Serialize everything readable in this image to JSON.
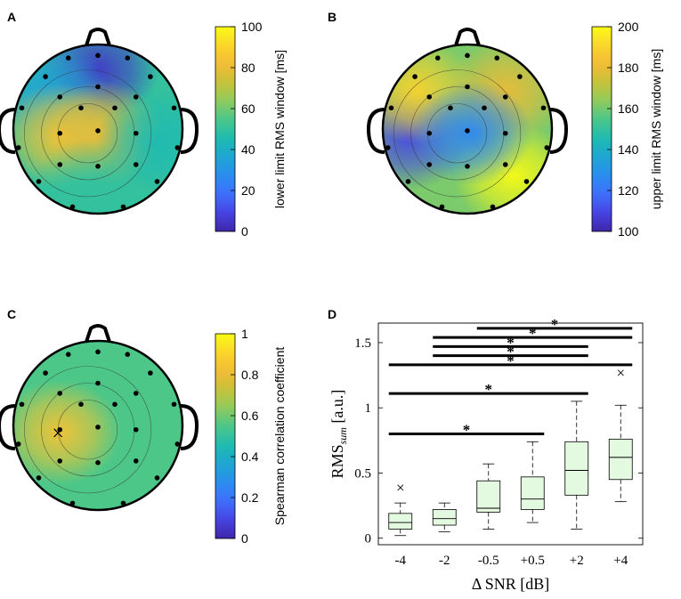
{
  "colors": {
    "parula": [
      "#3e26a8",
      "#4743e2",
      "#3f6ffd",
      "#2a8ef0",
      "#1ea6d3",
      "#1ebbb0",
      "#4ac78a",
      "#8fcb5e",
      "#c7c238",
      "#f4ba37",
      "#fbd62c",
      "#f9fb15"
    ],
    "box_fill": "#e4fae0",
    "axis": "#000000"
  },
  "chart_data": [
    {
      "panel": "A",
      "type": "heatmap",
      "subtype": "scalp-topography",
      "colorbar": {
        "label": "lower limit RMS window [ms]",
        "ticks": [
          "100",
          "80",
          "60",
          "40",
          "20",
          "0"
        ],
        "range": [
          0,
          100
        ]
      },
      "hotspots": [
        {
          "region": "front-center",
          "value": 5
        },
        {
          "region": "front-left",
          "value": 35
        },
        {
          "region": "center-left",
          "value": 85
        },
        {
          "region": "center",
          "value": 80
        },
        {
          "region": "right",
          "value": 45
        },
        {
          "region": "back",
          "value": 50
        }
      ]
    },
    {
      "panel": "B",
      "type": "heatmap",
      "subtype": "scalp-topography",
      "colorbar": {
        "label": "upper limit RMS window [ms]",
        "ticks": [
          "200",
          "180",
          "160",
          "140",
          "120",
          "100"
        ],
        "range": [
          100,
          200
        ]
      },
      "hotspots": [
        {
          "region": "left",
          "value": 110
        },
        {
          "region": "front-left",
          "value": 190
        },
        {
          "region": "right-back",
          "value": 200
        },
        {
          "region": "front-right",
          "value": 180
        },
        {
          "region": "center",
          "value": 125
        }
      ]
    },
    {
      "panel": "C",
      "type": "heatmap",
      "subtype": "scalp-topography",
      "colorbar": {
        "label": "Spearman correlation coefficient",
        "ticks": [
          "1",
          "0.8",
          "0.6",
          "0.4",
          "0.2",
          "0"
        ],
        "range": [
          0,
          1
        ]
      },
      "marker": {
        "symbol": "×",
        "region": "center-left"
      },
      "hotspots": [
        {
          "region": "center-left",
          "value": 0.85
        },
        {
          "region": "periphery",
          "value": 0.55
        }
      ]
    },
    {
      "panel": "D",
      "type": "box",
      "title": "",
      "xlabel": "Δ SNR [dB]",
      "ylabel_main": "RMS",
      "ylabel_sub": "sum",
      "ylabel_unit": "[a.u.]",
      "ylim": [
        -0.05,
        1.65
      ],
      "yticks": [
        "0",
        "0.5",
        "1",
        "1.5"
      ],
      "categories": [
        "-4",
        "-2",
        "-0.5",
        "+0.5",
        "+2",
        "+4"
      ],
      "boxes": [
        {
          "min": 0.02,
          "q1": 0.07,
          "median": 0.12,
          "q3": 0.19,
          "max": 0.27,
          "outliers": [
            0.39
          ]
        },
        {
          "min": 0.05,
          "q1": 0.1,
          "median": 0.15,
          "q3": 0.22,
          "max": 0.27,
          "outliers": []
        },
        {
          "min": 0.07,
          "q1": 0.2,
          "median": 0.23,
          "q3": 0.44,
          "max": 0.57,
          "outliers": []
        },
        {
          "min": 0.12,
          "q1": 0.22,
          "median": 0.3,
          "q3": 0.47,
          "max": 0.74,
          "outliers": []
        },
        {
          "min": 0.07,
          "q1": 0.33,
          "median": 0.52,
          "q3": 0.74,
          "max": 1.05,
          "outliers": []
        },
        {
          "min": 0.28,
          "q1": 0.45,
          "median": 0.62,
          "q3": 0.76,
          "max": 1.02,
          "outliers": [
            1.27
          ]
        }
      ],
      "significance": [
        {
          "from": 0,
          "to": 3,
          "y": 0.8,
          "label": "*"
        },
        {
          "from": 0,
          "to": 4,
          "y": 1.11,
          "label": "*"
        },
        {
          "from": 0,
          "to": 5,
          "y": 1.33,
          "label": "*"
        },
        {
          "from": 1,
          "to": 4,
          "y": 1.4,
          "label": "*"
        },
        {
          "from": 1,
          "to": 4,
          "y": 1.47,
          "label": "*"
        },
        {
          "from": 1,
          "to": 5,
          "y": 1.54,
          "label": "*"
        },
        {
          "from": 2,
          "to": 5,
          "y": 1.61,
          "label": "*"
        }
      ]
    }
  ]
}
